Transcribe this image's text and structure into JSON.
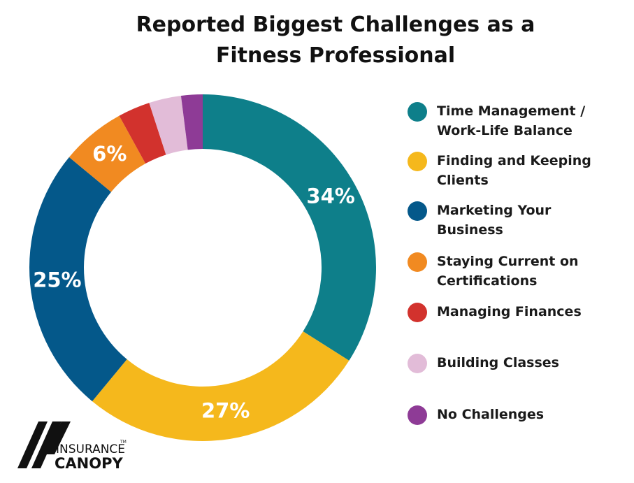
{
  "chart_data": {
    "type": "donut",
    "title": "Reported Biggest Challenges as a Fitness Professional",
    "categories": [
      "Time Management / Work-Life Balance",
      "Finding and Keeping Clients",
      "Marketing Your Business",
      "Staying Current on Certifications",
      "Managing Finances",
      "Building Classes",
      "No Challenges"
    ],
    "values": [
      34,
      27,
      25,
      6,
      3,
      3,
      2
    ],
    "value_labels": [
      "34%",
      "27%",
      "25%",
      "6%",
      null,
      null,
      null
    ],
    "colors": [
      "#0e7f8a",
      "#f5b81c",
      "#04588a",
      "#f18a21",
      "#d2322d",
      "#e2bcd8",
      "#8e3b96"
    ],
    "legend": "right"
  },
  "logo": {
    "top": "INSURANCE",
    "bottom": "CANOPY",
    "mark": "TM"
  }
}
